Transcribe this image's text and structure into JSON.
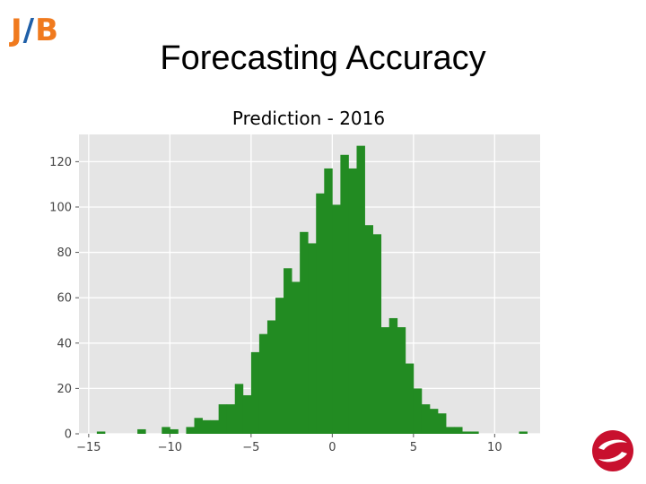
{
  "logo": {
    "j": "J",
    "slash": "/",
    "b": "B"
  },
  "slide": {
    "title": "Forecasting Accuracy"
  },
  "colors": {
    "bar": "#228b22",
    "plot_bg": "#e5e5e5",
    "grid": "#ffffff",
    "logo_orange": "#f07a1e",
    "logo_blue": "#1f5fa8",
    "corner_logo": "#c8102e"
  },
  "icons": {
    "corner": "swirl-logo-icon"
  },
  "chart_data": {
    "type": "bar",
    "title": "Prediction - 2016",
    "xlabel": "",
    "ylabel": "",
    "xlim": [
      -15.6,
      12.8
    ],
    "ylim": [
      0,
      132
    ],
    "xticks": [
      -15,
      -10,
      -5,
      0,
      5,
      10
    ],
    "xtick_labels": [
      "−15",
      "−10",
      "−5",
      "0",
      "5",
      "10"
    ],
    "yticks": [
      0,
      20,
      40,
      60,
      80,
      100,
      120
    ],
    "ytick_labels": [
      "0",
      "20",
      "40",
      "60",
      "80",
      "100",
      "120"
    ],
    "grid": true,
    "bin_width": 0.5,
    "bin_starts": [
      -14.5,
      -12.0,
      -10.5,
      -10.0,
      -9.0,
      -8.5,
      -8.0,
      -7.5,
      -7.0,
      -6.5,
      -6.0,
      -5.5,
      -5.0,
      -4.5,
      -4.0,
      -3.5,
      -3.0,
      -2.5,
      -2.0,
      -1.5,
      -1.0,
      -0.5,
      0.0,
      0.5,
      1.0,
      1.5,
      2.0,
      2.5,
      3.0,
      3.5,
      4.0,
      4.5,
      5.0,
      5.5,
      6.0,
      6.5,
      7.0,
      7.5,
      8.0,
      8.5,
      11.5
    ],
    "values": [
      1,
      2,
      3,
      2,
      3,
      7,
      6,
      6,
      13,
      13,
      22,
      17,
      36,
      44,
      50,
      60,
      73,
      67,
      89,
      84,
      106,
      117,
      101,
      123,
      117,
      127,
      92,
      88,
      47,
      51,
      47,
      31,
      20,
      13,
      11,
      9,
      3,
      3,
      1,
      1,
      1
    ]
  }
}
